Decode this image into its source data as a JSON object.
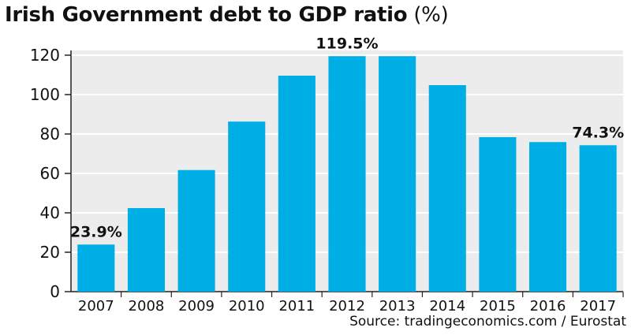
{
  "title_main": "Irish Government debt to GDP ratio",
  "title_unit": "(%)",
  "source": "Source: tradingeconomics.com / Eurostat",
  "chart_data": {
    "type": "bar",
    "title": "Irish Government debt to GDP ratio (%)",
    "categories": [
      "2007",
      "2008",
      "2009",
      "2010",
      "2011",
      "2012",
      "2013",
      "2014",
      "2015",
      "2016",
      "2017"
    ],
    "values": [
      23.9,
      42.4,
      61.7,
      86.3,
      109.6,
      119.5,
      119.5,
      104.8,
      78.4,
      75.9,
      74.3
    ],
    "data_labels": [
      {
        "index": 0,
        "text": "23.9%"
      },
      {
        "index": 5,
        "text": "119.5%"
      },
      {
        "index": 10,
        "text": "74.3%"
      }
    ],
    "xlabel": "",
    "ylabel": "",
    "ylim": [
      0,
      120
    ],
    "yticks": [
      0,
      20,
      40,
      60,
      80,
      100,
      120
    ],
    "grid": true,
    "colors": {
      "bar": "#00aee6",
      "plot_bg": "#ececec",
      "grid": "#ffffff",
      "text": "#111111"
    }
  }
}
